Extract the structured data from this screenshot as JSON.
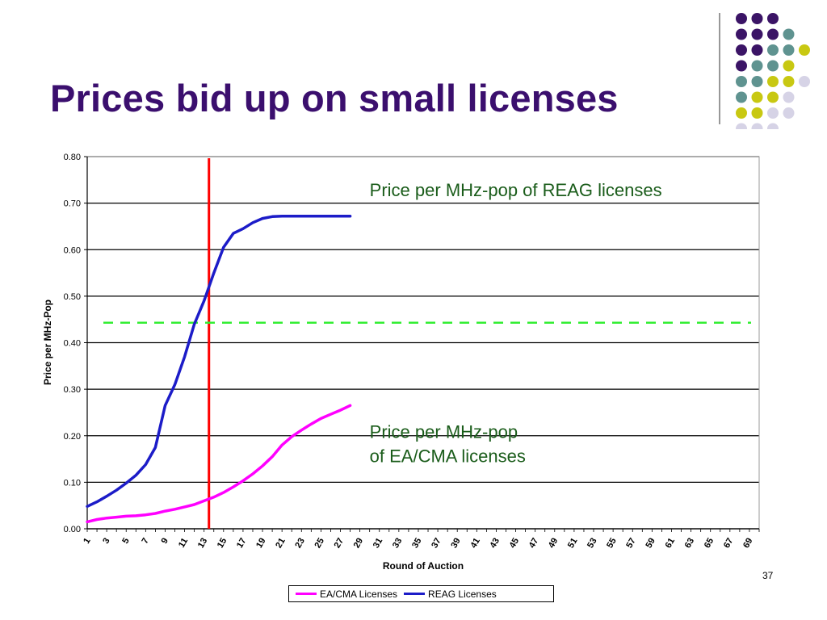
{
  "slide": {
    "title": "Prices bid up on small licenses",
    "page_number": "37"
  },
  "decoration": {
    "colors": [
      "#3b1466",
      "#5f9390",
      "#c8c812",
      "#d6d3e6"
    ],
    "grid": [
      [
        "#3b1466",
        "#3b1466",
        "#3b1466",
        null,
        null
      ],
      [
        "#3b1466",
        "#3b1466",
        "#3b1466",
        "#5f9390",
        null
      ],
      [
        "#3b1466",
        "#3b1466",
        "#5f9390",
        "#5f9390",
        "#c8c812"
      ],
      [
        "#3b1466",
        "#5f9390",
        "#5f9390",
        "#c8c812",
        null
      ],
      [
        "#5f9390",
        "#5f9390",
        "#c8c812",
        "#c8c812",
        "#d6d3e6"
      ],
      [
        "#5f9390",
        "#c8c812",
        "#c8c812",
        "#d6d3e6",
        null
      ],
      [
        "#c8c812",
        "#c8c812",
        "#d6d3e6",
        "#d6d3e6",
        null
      ],
      [
        "#d6d3e6",
        "#d6d3e6",
        "#d6d3e6",
        null,
        null
      ]
    ]
  },
  "chart_data": {
    "type": "line",
    "xlabel": "Round of Auction",
    "ylabel": "Price per MHz-Pop",
    "ylim": [
      0,
      0.8
    ],
    "yticks": [
      "0.00",
      "0.10",
      "0.20",
      "0.30",
      "0.40",
      "0.50",
      "0.60",
      "0.70",
      "0.80"
    ],
    "xticks": [
      "1",
      "3",
      "5",
      "7",
      "9",
      "11",
      "13",
      "15",
      "17",
      "19",
      "21",
      "23",
      "25",
      "27",
      "29",
      "31",
      "33",
      "35",
      "37",
      "39",
      "41",
      "43",
      "45",
      "47",
      "49",
      "51",
      "53",
      "55",
      "57",
      "59",
      "61",
      "63",
      "65",
      "67",
      "69"
    ],
    "x_range": [
      1,
      70
    ],
    "grid": "horizontal",
    "legend_position": "bottom",
    "series": [
      {
        "name": "EA/CMA Licenses",
        "color": "#ff00ff",
        "points": [
          [
            1,
            0.015
          ],
          [
            2,
            0.02
          ],
          [
            3,
            0.023
          ],
          [
            4,
            0.025
          ],
          [
            5,
            0.027
          ],
          [
            6,
            0.028
          ],
          [
            7,
            0.03
          ],
          [
            8,
            0.033
          ],
          [
            9,
            0.038
          ],
          [
            10,
            0.042
          ],
          [
            11,
            0.047
          ],
          [
            12,
            0.052
          ],
          [
            13,
            0.06
          ],
          [
            14,
            0.068
          ],
          [
            15,
            0.078
          ],
          [
            16,
            0.09
          ],
          [
            17,
            0.103
          ],
          [
            18,
            0.118
          ],
          [
            19,
            0.135
          ],
          [
            20,
            0.155
          ],
          [
            21,
            0.18
          ],
          [
            22,
            0.198
          ],
          [
            23,
            0.212
          ],
          [
            24,
            0.225
          ],
          [
            25,
            0.237
          ],
          [
            26,
            0.246
          ],
          [
            27,
            0.255
          ],
          [
            28,
            0.265
          ]
        ]
      },
      {
        "name": "REAG Licenses",
        "color": "#1c1cc8",
        "points": [
          [
            1,
            0.048
          ],
          [
            2,
            0.058
          ],
          [
            3,
            0.07
          ],
          [
            4,
            0.083
          ],
          [
            5,
            0.098
          ],
          [
            6,
            0.115
          ],
          [
            7,
            0.138
          ],
          [
            8,
            0.175
          ],
          [
            9,
            0.265
          ],
          [
            10,
            0.31
          ],
          [
            11,
            0.37
          ],
          [
            12,
            0.44
          ],
          [
            13,
            0.49
          ],
          [
            14,
            0.55
          ],
          [
            15,
            0.605
          ],
          [
            16,
            0.635
          ],
          [
            17,
            0.645
          ],
          [
            18,
            0.658
          ],
          [
            19,
            0.667
          ],
          [
            20,
            0.671
          ],
          [
            21,
            0.672
          ],
          [
            22,
            0.672
          ],
          [
            23,
            0.672
          ],
          [
            24,
            0.672
          ],
          [
            25,
            0.672
          ],
          [
            26,
            0.672
          ],
          [
            27,
            0.672
          ],
          [
            28,
            0.672
          ]
        ]
      }
    ],
    "reference_lines": [
      {
        "orientation": "vertical",
        "x": 13.5,
        "color": "#ff0000",
        "style": "solid"
      },
      {
        "orientation": "horizontal",
        "y": 0.443,
        "color": "#33ee33",
        "style": "dashed"
      }
    ],
    "annotations": [
      {
        "lines": [
          "Price per MHz-pop of REAG licenses"
        ],
        "x": 30,
        "y": 0.715,
        "color": "#1a5c1a"
      },
      {
        "lines": [
          "Price per MHz-pop",
          "of EA/CMA licenses"
        ],
        "x": 30,
        "y": 0.195,
        "color": "#1a5c1a"
      }
    ]
  }
}
